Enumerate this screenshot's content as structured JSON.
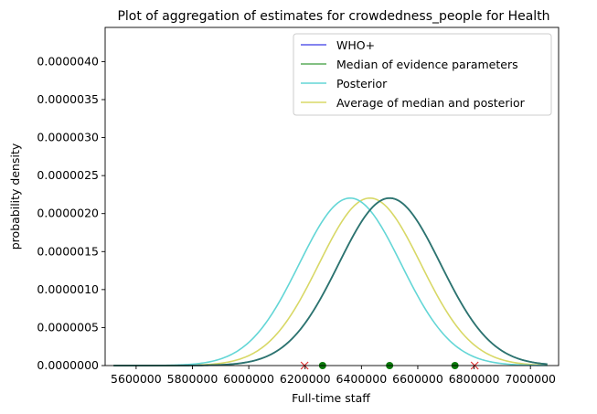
{
  "chart_data": {
    "type": "line",
    "title": "Plot of aggregation of estimates for crowdedness_people for Health",
    "xlabel": "Full-time staff",
    "ylabel": "probability density",
    "xlim": [
      5490000,
      7100000
    ],
    "ylim": [
      0,
      4.45e-06
    ],
    "xticks": [
      5600000,
      5800000,
      6000000,
      6200000,
      6400000,
      6600000,
      6800000,
      7000000
    ],
    "xtick_labels": [
      "5600000",
      "5800000",
      "6000000",
      "6200000",
      "6400000",
      "6600000",
      "6800000",
      "7000000"
    ],
    "yticks": [
      0,
      5e-07,
      1e-06,
      1.5e-06,
      2e-06,
      2.5e-06,
      3e-06,
      3.5e-06,
      4e-06
    ],
    "ytick_labels": [
      "0.0000000",
      "0.0000005",
      "0.0000010",
      "0.0000015",
      "0.0000020",
      "0.0000025",
      "0.0000030",
      "0.0000035",
      "0.0000040"
    ],
    "x_domain": [
      5520000,
      7060000
    ],
    "series": [
      {
        "name": "WHO+",
        "color": "#5b5bea",
        "mean": 6500000,
        "sd": 181000
      },
      {
        "name": "Median of evidence parameters",
        "color": "#5aac5a",
        "mean": 6500000,
        "sd": 181000
      },
      {
        "name": "Posterior",
        "color": "#63d6d6",
        "mean": 6360000,
        "sd": 181000
      },
      {
        "name": "Average of median and posterior",
        "color": "#d8d866",
        "mean": 6430000,
        "sd": 181000
      }
    ],
    "overlap_color": "#2c7272",
    "points_green": [
      6262000,
      6500000,
      6732000
    ],
    "points_red_x": [
      6198000,
      6802000
    ],
    "legend_position": "top-right"
  }
}
